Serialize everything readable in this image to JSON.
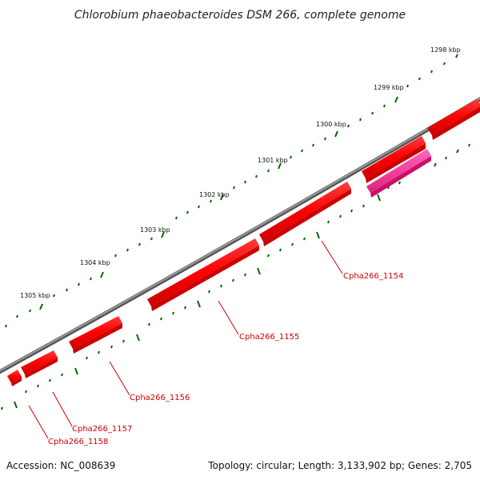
{
  "title": "Chlorobium phaeobacteroides DSM 266, complete genome",
  "footer": {
    "accession": "Accession: NC_008639",
    "summary": "Topology: circular; Length: 3,133,902 bp; Genes: 2,705"
  },
  "ticks": [
    {
      "label": "1298 kbp"
    },
    {
      "label": "1299 kbp"
    },
    {
      "label": "1300 kbp"
    },
    {
      "label": "1301 kbp"
    },
    {
      "label": "1302 kbp"
    },
    {
      "label": "1303 kbp"
    },
    {
      "label": "1304 kbp"
    },
    {
      "label": "1305 kbp"
    }
  ],
  "genes": [
    {
      "name": "Cpha266_1154"
    },
    {
      "name": "Cpha266_1155"
    },
    {
      "name": "Cpha266_1156"
    },
    {
      "name": "Cpha266_1157"
    },
    {
      "name": "Cpha266_1158"
    }
  ],
  "colors": {
    "backbone": "#808080",
    "gene": "#ff0000",
    "gene_highlight": "#ff3399",
    "tick": "#006600",
    "label": "#cc0000"
  }
}
